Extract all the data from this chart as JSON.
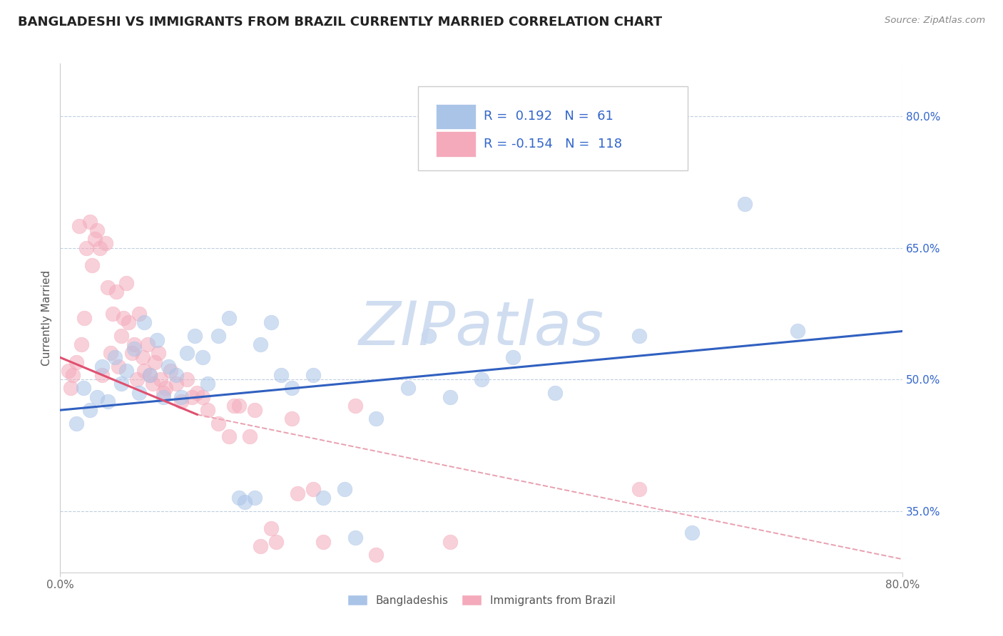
{
  "title": "BANGLADESHI VS IMMIGRANTS FROM BRAZIL CURRENTLY MARRIED CORRELATION CHART",
  "source_text": "Source: ZipAtlas.com",
  "ylabel": "Currently Married",
  "xlim": [
    0.0,
    80.0
  ],
  "ylim": [
    28.0,
    86.0
  ],
  "xtick_labels": [
    "0.0%",
    "80.0%"
  ],
  "xtick_positions": [
    0.0,
    80.0
  ],
  "ytick_labels": [
    "35.0%",
    "50.0%",
    "65.0%",
    "80.0%"
  ],
  "ytick_positions": [
    35.0,
    50.0,
    65.0,
    80.0
  ],
  "R_blue": 0.192,
  "N_blue": 61,
  "R_pink": -0.154,
  "N_pink": 118,
  "blue_color": "#aac4e8",
  "pink_color": "#f4aabb",
  "blue_line_color": "#3060c0",
  "pink_line_color": "#e05070",
  "pink_dash_color": "#e8a0b0",
  "legend_text_color": "#3366cc",
  "background_color": "#ffffff",
  "grid_color": "#c0cfe0",
  "watermark_color": "#c8d8ee",
  "title_fontsize": 13,
  "axis_label_fontsize": 11,
  "tick_fontsize": 11,
  "legend_fontsize": 13,
  "blue_scatter_x": [
    1.5,
    2.2,
    2.8,
    3.5,
    4.0,
    4.5,
    5.2,
    5.8,
    6.3,
    7.0,
    7.5,
    8.0,
    8.5,
    9.2,
    9.8,
    10.3,
    11.0,
    11.5,
    12.0,
    12.8,
    13.5,
    14.0,
    15.0,
    16.0,
    17.0,
    17.5,
    18.5,
    19.0,
    20.0,
    21.0,
    22.0,
    24.0,
    25.0,
    27.0,
    28.0,
    30.0,
    33.0,
    35.0,
    37.0,
    40.0,
    43.0,
    47.0,
    55.0,
    60.0,
    65.0,
    70.0
  ],
  "blue_scatter_y": [
    45.0,
    49.0,
    46.5,
    48.0,
    51.5,
    47.5,
    52.5,
    49.5,
    51.0,
    53.5,
    48.5,
    56.5,
    50.5,
    54.5,
    48.0,
    51.5,
    50.5,
    48.0,
    53.0,
    55.0,
    52.5,
    49.5,
    55.0,
    57.0,
    36.5,
    36.0,
    36.5,
    54.0,
    56.5,
    50.5,
    49.0,
    50.5,
    36.5,
    37.5,
    32.0,
    45.5,
    49.0,
    55.0,
    48.0,
    50.0,
    52.5,
    48.5,
    55.0,
    32.5,
    70.0,
    55.5
  ],
  "pink_scatter_x": [
    0.8,
    1.0,
    1.2,
    1.5,
    1.8,
    2.0,
    2.3,
    2.5,
    2.8,
    3.0,
    3.3,
    3.5,
    3.8,
    4.0,
    4.3,
    4.5,
    4.8,
    5.0,
    5.3,
    5.5,
    5.8,
    6.0,
    6.3,
    6.5,
    6.8,
    7.0,
    7.3,
    7.5,
    7.8,
    8.0,
    8.3,
    8.5,
    8.8,
    9.0,
    9.3,
    9.5,
    9.8,
    10.0,
    10.5,
    11.0,
    11.5,
    12.0,
    12.5,
    13.0,
    13.5,
    14.0,
    15.0,
    16.0,
    17.0,
    18.0,
    19.0,
    20.5,
    22.0,
    24.0,
    16.5,
    18.5,
    20.0,
    22.5,
    25.0,
    28.0,
    30.0,
    37.0,
    55.0
  ],
  "pink_scatter_y": [
    51.0,
    49.0,
    50.5,
    52.0,
    67.5,
    54.0,
    57.0,
    65.0,
    68.0,
    63.0,
    66.0,
    67.0,
    65.0,
    50.5,
    65.5,
    60.5,
    53.0,
    57.5,
    60.0,
    51.5,
    55.0,
    57.0,
    61.0,
    56.5,
    53.0,
    54.0,
    50.0,
    57.5,
    52.5,
    51.0,
    54.0,
    50.5,
    49.5,
    52.0,
    53.0,
    50.0,
    48.5,
    49.0,
    51.0,
    49.5,
    47.5,
    50.0,
    48.0,
    48.5,
    48.0,
    46.5,
    45.0,
    43.5,
    47.0,
    43.5,
    31.0,
    31.5,
    45.5,
    37.5,
    47.0,
    46.5,
    33.0,
    37.0,
    31.5,
    47.0,
    30.0,
    31.5,
    37.5
  ],
  "blue_line_x0": 0.0,
  "blue_line_x1": 80.0,
  "blue_line_y0": 46.5,
  "blue_line_y1": 55.5,
  "pink_solid_x0": 0.0,
  "pink_solid_x1": 13.0,
  "pink_solid_y0": 52.5,
  "pink_solid_y1": 46.0,
  "pink_dash_x0": 13.0,
  "pink_dash_x1": 80.0,
  "pink_dash_y0": 46.0,
  "pink_dash_y1": 29.5
}
